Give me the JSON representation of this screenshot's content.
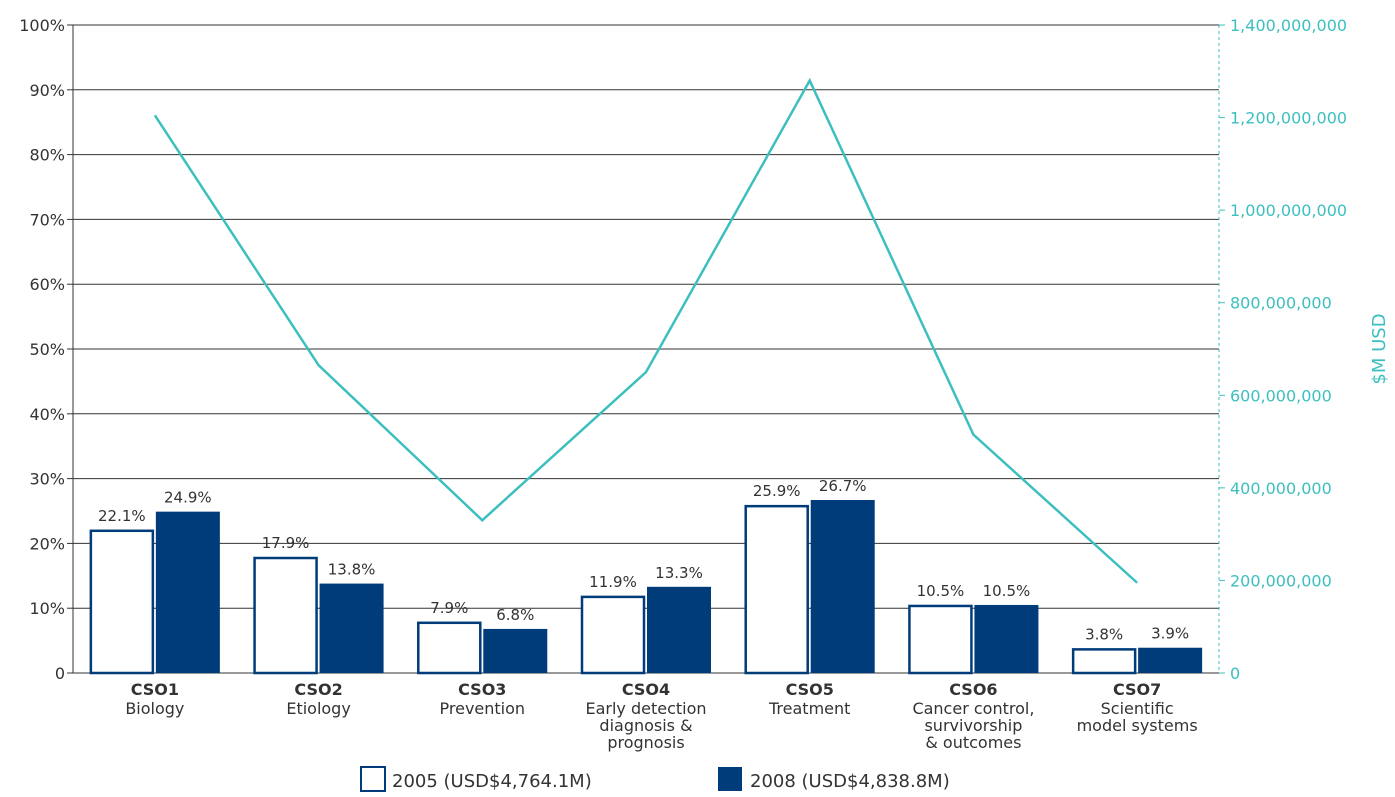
{
  "chart_data": {
    "type": "bar",
    "categories": [
      {
        "code": "CSO1",
        "label_lines": [
          "Biology"
        ]
      },
      {
        "code": "CSO2",
        "label_lines": [
          "Etiology"
        ]
      },
      {
        "code": "CSO3",
        "label_lines": [
          "Prevention"
        ]
      },
      {
        "code": "CSO4",
        "label_lines": [
          "Early detection",
          "diagnosis &",
          "prognosis"
        ]
      },
      {
        "code": "CSO5",
        "label_lines": [
          "Treatment"
        ]
      },
      {
        "code": "CSO6",
        "label_lines": [
          "Cancer control,",
          "survivorship",
          "& outcomes"
        ]
      },
      {
        "code": "CSO7",
        "label_lines": [
          "Scientific",
          "model systems"
        ]
      }
    ],
    "series": [
      {
        "name": "2005 (USD$4,764.1M)",
        "style": "outline",
        "values": [
          22.1,
          17.9,
          7.9,
          11.9,
          25.9,
          10.5,
          3.8
        ],
        "labels": [
          "22.1%",
          "17.9%",
          "7.9%",
          "11.9%",
          "25.9%",
          "10.5%",
          "3.8%"
        ]
      },
      {
        "name": "2008 (USD$4,838.8M)",
        "style": "filled",
        "values": [
          24.9,
          13.8,
          6.8,
          13.3,
          26.7,
          10.5,
          3.9
        ],
        "labels": [
          "24.9%",
          "13.8%",
          "6.8%",
          "13.3%",
          "26.7%",
          "10.5%",
          "3.9%"
        ]
      }
    ],
    "line_series": {
      "axis": "right",
      "values": [
        1205000000,
        665000000,
        330000000,
        650000000,
        1280000000,
        515000000,
        195000000
      ]
    },
    "left_axis": {
      "ylim": [
        0,
        100
      ],
      "ticks": [
        "0",
        "10%",
        "20%",
        "30%",
        "40%",
        "50%",
        "60%",
        "70%",
        "80%",
        "90%",
        "100%"
      ]
    },
    "right_axis": {
      "ylim": [
        0,
        1400000000
      ],
      "label": "$M USD",
      "ticks": [
        "0",
        "200,000,000",
        "400,000,000",
        "600,000,000",
        "800,000,000",
        "1,000,000,000",
        "1,200,000,000",
        "1,400,000,000"
      ]
    },
    "grid": true,
    "legend_position": "bottom"
  },
  "colors": {
    "bar_fill_2008": "#003B7A",
    "bar_outline_2005": "#003B7A",
    "line": "#3DBFBF",
    "right_axis": "#3DBFBF",
    "grid": "#333333",
    "text": "#333333"
  }
}
